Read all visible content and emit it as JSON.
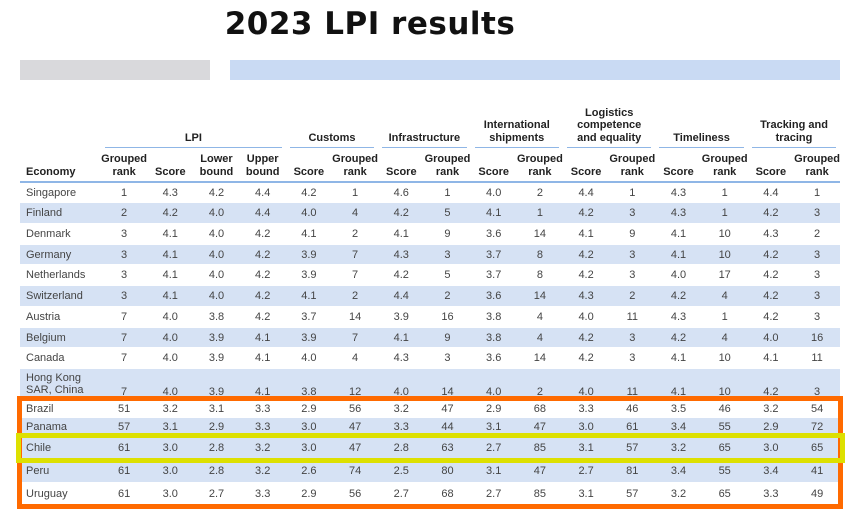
{
  "title": "2023 LPI results",
  "colors": {
    "orange_highlight": "#ff6a00",
    "yellow_highlight": "#dde000",
    "stripe": "#d6e2f4",
    "header_rule": "#8fb6e6"
  },
  "groups": [
    {
      "label": "LPI",
      "span": 4
    },
    {
      "label": "Customs",
      "span": 2
    },
    {
      "label": "Infrastructure",
      "span": 2
    },
    {
      "label": "International shipments",
      "span": 2
    },
    {
      "label": "Logistics competence and equality",
      "span": 2
    },
    {
      "label": "Timeliness",
      "span": 2
    },
    {
      "label": "Tracking and tracing",
      "span": 2
    }
  ],
  "columns": [
    "Economy",
    "Grouped rank",
    "Score",
    "Lower bound",
    "Upper bound",
    "Score",
    "Grouped rank",
    "Score",
    "Grouped rank",
    "Score",
    "Grouped rank",
    "Score",
    "Grouped rank",
    "Score",
    "Grouped rank",
    "Score",
    "Grouped rank"
  ],
  "rows": [
    [
      "Singapore",
      "1",
      "4.3",
      "4.2",
      "4.4",
      "4.2",
      "1",
      "4.6",
      "1",
      "4.0",
      "2",
      "4.4",
      "1",
      "4.3",
      "1",
      "4.4",
      "1"
    ],
    [
      "Finland",
      "2",
      "4.2",
      "4.0",
      "4.4",
      "4.0",
      "4",
      "4.2",
      "5",
      "4.1",
      "1",
      "4.2",
      "3",
      "4.3",
      "1",
      "4.2",
      "3"
    ],
    [
      "Denmark",
      "3",
      "4.1",
      "4.0",
      "4.2",
      "4.1",
      "2",
      "4.1",
      "9",
      "3.6",
      "14",
      "4.1",
      "9",
      "4.1",
      "10",
      "4.3",
      "2"
    ],
    [
      "Germany",
      "3",
      "4.1",
      "4.0",
      "4.2",
      "3.9",
      "7",
      "4.3",
      "3",
      "3.7",
      "8",
      "4.2",
      "3",
      "4.1",
      "10",
      "4.2",
      "3"
    ],
    [
      "Netherlands",
      "3",
      "4.1",
      "4.0",
      "4.2",
      "3.9",
      "7",
      "4.2",
      "5",
      "3.7",
      "8",
      "4.2",
      "3",
      "4.0",
      "17",
      "4.2",
      "3"
    ],
    [
      "Switzerland",
      "3",
      "4.1",
      "4.0",
      "4.2",
      "4.1",
      "2",
      "4.4",
      "2",
      "3.6",
      "14",
      "4.3",
      "2",
      "4.2",
      "4",
      "4.2",
      "3"
    ],
    [
      "Austria",
      "7",
      "4.0",
      "3.8",
      "4.2",
      "3.7",
      "14",
      "3.9",
      "16",
      "3.8",
      "4",
      "4.0",
      "11",
      "4.3",
      "1",
      "4.2",
      "3"
    ],
    [
      "Belgium",
      "7",
      "4.0",
      "3.9",
      "4.1",
      "3.9",
      "7",
      "4.1",
      "9",
      "3.8",
      "4",
      "4.2",
      "3",
      "4.2",
      "4",
      "4.0",
      "16"
    ],
    [
      "Canada",
      "7",
      "4.0",
      "3.9",
      "4.1",
      "4.0",
      "4",
      "4.3",
      "3",
      "3.6",
      "14",
      "4.2",
      "3",
      "4.1",
      "10",
      "4.1",
      "11"
    ],
    [
      "Hong Kong SAR, China",
      "7",
      "4.0",
      "3.9",
      "4.1",
      "3.8",
      "12",
      "4.0",
      "14",
      "4.0",
      "2",
      "4.0",
      "11",
      "4.1",
      "10",
      "4.2",
      "3"
    ],
    [
      "Brazil",
      "51",
      "3.2",
      "3.1",
      "3.3",
      "2.9",
      "56",
      "3.2",
      "47",
      "2.9",
      "68",
      "3.3",
      "46",
      "3.5",
      "46",
      "3.2",
      "54"
    ],
    [
      "Panama",
      "57",
      "3.1",
      "2.9",
      "3.3",
      "3.0",
      "47",
      "3.3",
      "44",
      "3.1",
      "47",
      "3.0",
      "61",
      "3.4",
      "55",
      "2.9",
      "72"
    ],
    [
      "Chile",
      "61",
      "3.0",
      "2.8",
      "3.2",
      "3.0",
      "47",
      "2.8",
      "63",
      "2.7",
      "85",
      "3.1",
      "57",
      "3.2",
      "65",
      "3.0",
      "65"
    ],
    [
      "Peru",
      "61",
      "3.0",
      "2.8",
      "3.2",
      "2.6",
      "74",
      "2.5",
      "80",
      "3.1",
      "47",
      "2.7",
      "81",
      "3.4",
      "55",
      "3.4",
      "41"
    ],
    [
      "Uruguay",
      "61",
      "3.0",
      "2.7",
      "3.3",
      "2.9",
      "56",
      "2.7",
      "68",
      "2.7",
      "85",
      "3.1",
      "57",
      "3.2",
      "65",
      "3.3",
      "49"
    ]
  ]
}
